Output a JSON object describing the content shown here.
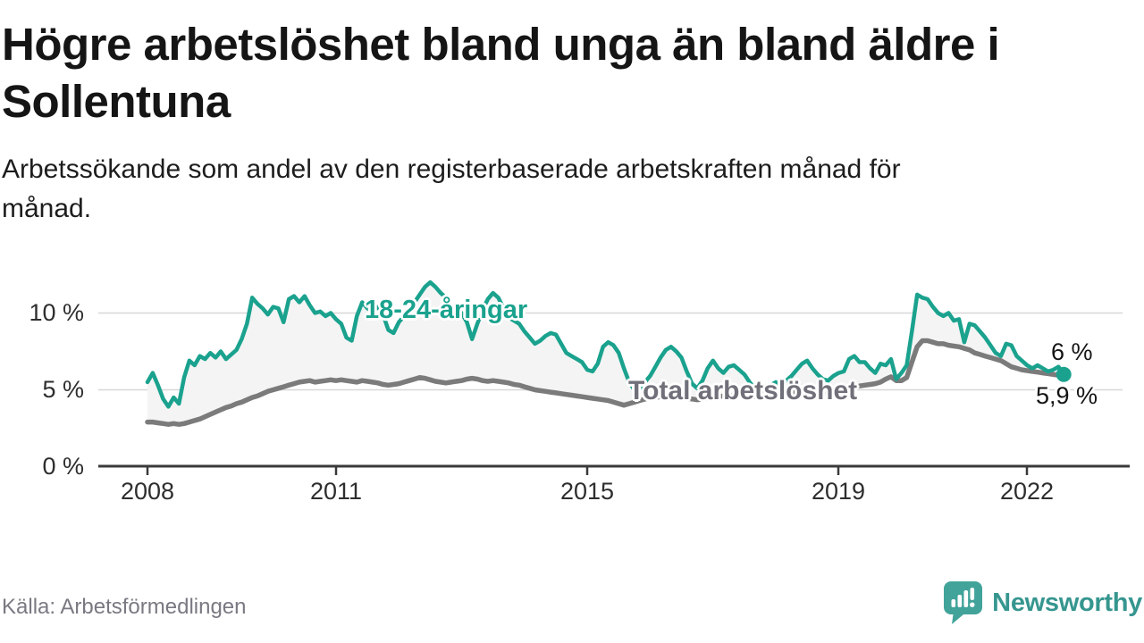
{
  "header": {
    "title_lines": [
      "Högre arbetslöshet bland unga än bland äldre i",
      "Sollentuna"
    ],
    "subtitle_lines": [
      "Arbetssökande som andel av den registerbaserade arbetskraften månad för",
      "månad."
    ]
  },
  "chart_data": {
    "type": "line",
    "title": "Högre arbetslöshet bland unga än bland äldre i Sollentuna",
    "subtitle": "Arbetssökande som andel av den registerbaserade arbetskraften månad för månad.",
    "frequency": "monthly",
    "x_start": "2008-01",
    "x_end": "2022-08",
    "ylim": [
      0,
      12.5
    ],
    "grid": "horizontal",
    "legend_position": "inline-labels",
    "y_tick_labels": [
      "10 %",
      "5 %",
      "0 %"
    ],
    "y_tick_values": [
      10,
      5,
      0
    ],
    "x_tick_labels": [
      "2008",
      "2011",
      "2015",
      "2019",
      "2022"
    ],
    "x_tick_years": [
      2008,
      2011,
      2015,
      2019,
      2022
    ],
    "colors": {
      "youth": "#1AA28E",
      "total": "#7B7B7B",
      "band": "#F4F4F4",
      "grid": "#D7D7D7",
      "axis": "#3A3A3A"
    },
    "series": [
      {
        "name": "18-24-åringar",
        "key": "youth",
        "color": "#1AA28E",
        "values": [
          5.5,
          6.1,
          5.3,
          4.4,
          3.9,
          4.5,
          4.1,
          5.8,
          6.9,
          6.6,
          7.2,
          7.0,
          7.4,
          7.1,
          7.5,
          7.0,
          7.3,
          7.6,
          8.3,
          9.3,
          11.0,
          10.6,
          10.3,
          9.9,
          10.4,
          10.3,
          9.4,
          10.9,
          11.1,
          10.7,
          11.1,
          10.5,
          10.0,
          10.1,
          9.8,
          10.0,
          9.6,
          9.3,
          8.4,
          8.2,
          9.8,
          10.7,
          10.3,
          10.1,
          10.4,
          9.9,
          8.9,
          8.7,
          9.4,
          9.8,
          10.3,
          10.7,
          11.2,
          11.7,
          12.0,
          11.7,
          11.3,
          11.0,
          10.3,
          9.9,
          10.0,
          9.4,
          8.3,
          9.3,
          10.2,
          10.9,
          11.3,
          11.0,
          10.3,
          9.7,
          9.5,
          9.3,
          8.8,
          8.4,
          8.0,
          8.2,
          8.5,
          8.7,
          8.6,
          8.0,
          7.4,
          7.2,
          7.0,
          6.8,
          6.3,
          6.2,
          6.7,
          7.8,
          8.1,
          7.9,
          7.4,
          6.4,
          5.5,
          5.0,
          5.1,
          5.5,
          5.9,
          6.5,
          7.1,
          7.6,
          7.8,
          7.5,
          7.1,
          6.2,
          5.4,
          5.1,
          5.6,
          6.4,
          6.9,
          6.4,
          6.1,
          6.5,
          6.6,
          6.3,
          6.0,
          5.5,
          5.1,
          4.9,
          5.0,
          5.3,
          5.5,
          5.3,
          5.6,
          5.9,
          6.3,
          6.7,
          6.9,
          6.4,
          6.0,
          5.7,
          5.6,
          5.9,
          6.1,
          6.2,
          7.0,
          7.2,
          6.8,
          6.8,
          6.4,
          6.1,
          6.7,
          6.6,
          7.0,
          5.7,
          6.1,
          6.6,
          8.8,
          11.2,
          11.0,
          10.9,
          10.4,
          10.0,
          9.8,
          10.0,
          9.5,
          9.6,
          8.1,
          9.3,
          9.2,
          8.8,
          8.4,
          7.9,
          7.4,
          7.2,
          8.0,
          7.9,
          7.2,
          6.9,
          6.6,
          6.4,
          6.6,
          6.4,
          6.2,
          6.3,
          6.5,
          6.0
        ],
        "last_value": 6.0
      },
      {
        "name": "Total arbetslöshet",
        "key": "total",
        "color": "#7B7B7B",
        "values": [
          2.9,
          2.9,
          2.85,
          2.8,
          2.75,
          2.8,
          2.75,
          2.8,
          2.9,
          3.0,
          3.1,
          3.25,
          3.4,
          3.55,
          3.7,
          3.85,
          3.95,
          4.1,
          4.2,
          4.35,
          4.5,
          4.6,
          4.75,
          4.9,
          5.0,
          5.1,
          5.2,
          5.3,
          5.4,
          5.5,
          5.55,
          5.6,
          5.5,
          5.55,
          5.6,
          5.65,
          5.6,
          5.65,
          5.6,
          5.55,
          5.5,
          5.6,
          5.55,
          5.5,
          5.45,
          5.35,
          5.3,
          5.35,
          5.4,
          5.5,
          5.6,
          5.7,
          5.8,
          5.75,
          5.65,
          5.55,
          5.5,
          5.45,
          5.5,
          5.55,
          5.6,
          5.7,
          5.75,
          5.7,
          5.6,
          5.55,
          5.6,
          5.55,
          5.5,
          5.45,
          5.35,
          5.3,
          5.2,
          5.1,
          5.0,
          4.95,
          4.9,
          4.85,
          4.8,
          4.75,
          4.7,
          4.65,
          4.6,
          4.55,
          4.5,
          4.45,
          4.4,
          4.35,
          4.3,
          4.2,
          4.1,
          4.0,
          4.1,
          4.2,
          4.3,
          4.4,
          4.45,
          4.5,
          4.55,
          4.6,
          4.6,
          4.55,
          4.5,
          4.45,
          4.4,
          4.35,
          4.4,
          4.45,
          4.5,
          4.55,
          4.6,
          4.65,
          4.6,
          4.7,
          4.65,
          4.6,
          4.55,
          4.5,
          4.55,
          4.6,
          4.65,
          4.7,
          4.75,
          4.8,
          4.85,
          4.9,
          4.95,
          4.9,
          4.85,
          4.8,
          4.85,
          4.9,
          4.95,
          5.0,
          5.1,
          5.2,
          5.25,
          5.3,
          5.35,
          5.4,
          5.5,
          5.7,
          5.85,
          5.6,
          5.6,
          5.8,
          6.8,
          7.8,
          8.2,
          8.2,
          8.1,
          8.0,
          8.0,
          7.9,
          7.85,
          7.8,
          7.7,
          7.6,
          7.4,
          7.3,
          7.2,
          7.1,
          7.0,
          6.9,
          6.7,
          6.5,
          6.4,
          6.3,
          6.25,
          6.2,
          6.15,
          6.1,
          6.05,
          6.0,
          5.95,
          5.9
        ],
        "last_value": 5.9
      }
    ],
    "end_labels": {
      "youth": "6 %",
      "total": "5,9 %"
    }
  },
  "footer": {
    "source": "Källa: Arbetsförmedlingen",
    "brand": "Newsworthy"
  }
}
